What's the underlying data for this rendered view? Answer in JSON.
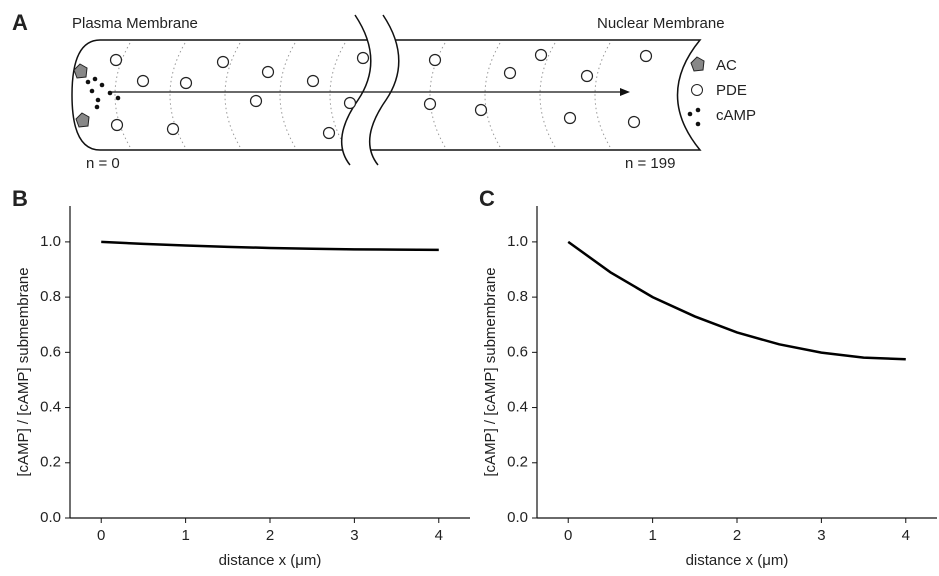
{
  "panel_a": {
    "label": "A",
    "left_title": "Plasma Membrane",
    "right_title": "Nuclear Membrane",
    "legend": [
      "AC",
      "PDE",
      "cAMP"
    ],
    "left_index": "n = 0",
    "right_index": "n = 199"
  },
  "chart_data": [
    {
      "type": "line",
      "panel": "B",
      "xlabel": "distance x (μm)",
      "ylabel": "[cAMP] / [cAMP] submembrane",
      "x": [
        0,
        0.5,
        1,
        1.5,
        2,
        2.5,
        3,
        3.5,
        4
      ],
      "series": [
        {
          "color": "#000000",
          "values": [
            1.0,
            0.993,
            0.987,
            0.982,
            0.978,
            0.975,
            0.973,
            0.972,
            0.971
          ]
        }
      ],
      "xlim": [
        -0.37,
        4.37
      ],
      "ylim": [
        0,
        1.13
      ],
      "xticks": [
        0,
        1,
        2,
        3,
        4
      ],
      "yticks": [
        {
          "value": 0,
          "label": "0.0"
        },
        {
          "value": 0.2,
          "label": "0.2"
        },
        {
          "value": 0.4,
          "label": "0.4"
        },
        {
          "value": 0.6,
          "label": "0.6"
        },
        {
          "value": 0.8,
          "label": "0.8"
        },
        {
          "value": 1,
          "label": "1.0"
        }
      ]
    },
    {
      "type": "line",
      "panel": "C",
      "xlabel": "distance x (μm)",
      "ylabel": "[cAMP] / [cAMP] submembrane",
      "x": [
        0,
        0.5,
        1,
        1.5,
        2,
        2.5,
        3,
        3.5,
        4
      ],
      "series": [
        {
          "color": "#000000",
          "values": [
            1.0,
            0.89,
            0.8,
            0.73,
            0.672,
            0.629,
            0.599,
            0.581,
            0.575
          ]
        }
      ],
      "xlim": [
        -0.37,
        4.37
      ],
      "ylim": [
        0,
        1.13
      ],
      "xticks": [
        0,
        1,
        2,
        3,
        4
      ],
      "yticks": [
        {
          "value": 0,
          "label": "0.0"
        },
        {
          "value": 0.2,
          "label": "0.2"
        },
        {
          "value": 0.4,
          "label": "0.4"
        },
        {
          "value": 0.6,
          "label": "0.6"
        },
        {
          "value": 0.8,
          "label": "0.8"
        },
        {
          "value": 1,
          "label": "1.0"
        }
      ]
    }
  ]
}
